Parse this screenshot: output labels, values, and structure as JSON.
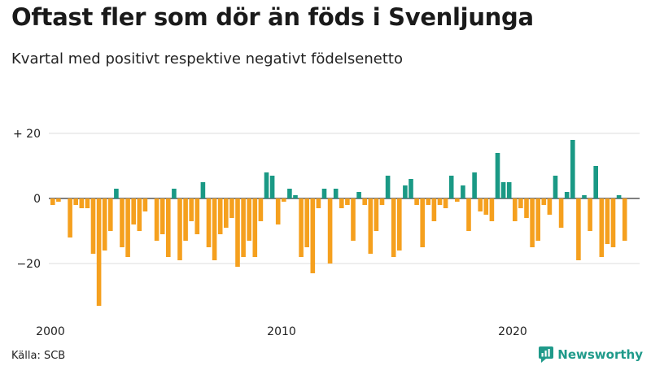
{
  "header": {
    "title": "Oftast fler som dör än föds i Svenljunga",
    "subtitle": "Kvartal med positivt respektive negativt födelsenetto"
  },
  "footer": {
    "source": "Källa: SCB",
    "brand": "Newsworthy"
  },
  "colors": {
    "positive": "#1a9985",
    "negative": "#f5a01e",
    "brand": "#1f9a8a"
  },
  "chart_data": {
    "type": "bar",
    "title": "Oftast fler som dör än föds i Svenljunga",
    "subtitle": "Kvartal med positivt respektive negativt födelsenetto",
    "xlabel": "",
    "ylabel": "",
    "ylim": [
      -35,
      22
    ],
    "yticks": [
      20,
      0,
      -20
    ],
    "ytick_labels": [
      "+ 20",
      "0",
      "−20"
    ],
    "xticks": [
      2000,
      2010,
      2020
    ],
    "xlim": [
      2000,
      2025
    ],
    "grid": true,
    "x_start": 2000,
    "quarters_per_year": 4,
    "values": [
      -2,
      -1,
      0,
      -12,
      -2,
      -3,
      -3,
      -17,
      -33,
      -16,
      -10,
      3,
      -15,
      -18,
      -8,
      -10,
      -4,
      0,
      -13,
      -11,
      -18,
      3,
      -19,
      -13,
      -7,
      -11,
      5,
      -15,
      -19,
      -11,
      -9,
      -6,
      -21,
      -18,
      -13,
      -18,
      -7,
      8,
      7,
      -8,
      -1,
      3,
      1,
      -18,
      -15,
      -23,
      -3,
      3,
      -20,
      3,
      -3,
      -2,
      -13,
      2,
      -2,
      -17,
      -10,
      -2,
      7,
      -18,
      -16,
      4,
      6,
      -2,
      -15,
      -2,
      -7,
      -2,
      -3,
      7,
      -1,
      4,
      -10,
      8,
      -4,
      -5,
      -7,
      14,
      5,
      5,
      -7,
      -3,
      -6,
      -15,
      -13,
      -2,
      -5,
      7,
      -9,
      2,
      18,
      -19,
      1,
      -10,
      10,
      -18,
      -14,
      -15,
      1,
      -13
    ]
  }
}
